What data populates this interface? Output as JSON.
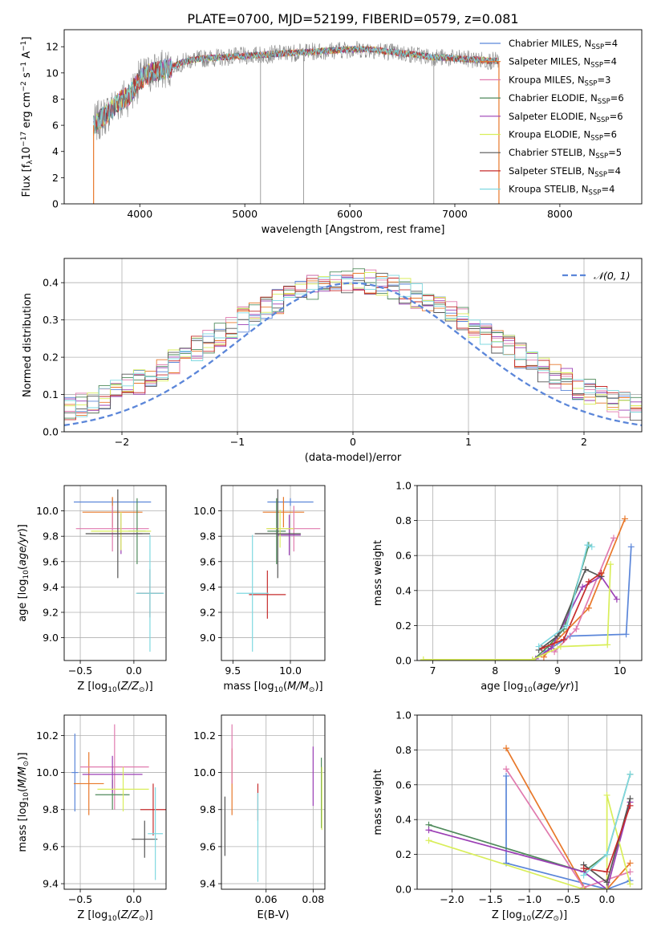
{
  "figure_title": "PLATE=0700, MJD=52199, FIBERID=0579, z=0.081",
  "colors": {
    "chabrier_miles": "#5b86d9",
    "salpeter_miles": "#e8782a",
    "kroupa_miles": "#e07aae",
    "chabrier_elodie": "#4f8a5b",
    "salpeter_elodie": "#9b3fb5",
    "kroupa_elodie": "#d9ee5a",
    "chabrier_stelib": "#555555",
    "salpeter_stelib": "#c62c2c",
    "kroupa_stelib": "#7fd8e0",
    "normal": "#5b86d9",
    "grid": "#b0b0b0"
  },
  "legend": [
    {
      "label": "Chabrier MILES, N",
      "sub": "SSP",
      "suffix": "=4",
      "color_key": "chabrier_miles"
    },
    {
      "label": "Salpeter MILES, N",
      "sub": "SSP",
      "suffix": "=4",
      "color_key": "salpeter_miles"
    },
    {
      "label": "Kroupa MILES, N",
      "sub": "SSP",
      "suffix": "=3",
      "color_key": "kroupa_miles"
    },
    {
      "label": "Chabrier ELODIE, N",
      "sub": "SSP",
      "suffix": "=6",
      "color_key": "chabrier_elodie"
    },
    {
      "label": "Salpeter ELODIE, N",
      "sub": "SSP",
      "suffix": "=6",
      "color_key": "salpeter_elodie"
    },
    {
      "label": "Kroupa ELODIE, N",
      "sub": "SSP",
      "suffix": "=6",
      "color_key": "kroupa_elodie"
    },
    {
      "label": "Chabrier STELIB, N",
      "sub": "SSP",
      "suffix": "=5",
      "color_key": "chabrier_stelib"
    },
    {
      "label": "Salpeter STELIB, N",
      "sub": "SSP",
      "suffix": "=4",
      "color_key": "salpeter_stelib"
    },
    {
      "label": "Kroupa STELIB, N",
      "sub": "SSP",
      "suffix": "=4",
      "color_key": "kroupa_stelib"
    }
  ],
  "chart_data": [
    {
      "id": "spectrum",
      "type": "line",
      "xlabel": "wavelength [Angstrom, rest frame]",
      "ylabel": "Flux [f_λ 10^-17 erg cm^-2 s^-1 A^-1]",
      "xlim": [
        3280,
        8780
      ],
      "ylim": [
        0,
        13.3
      ],
      "xticks": [
        4000,
        5000,
        6000,
        7000,
        8000
      ],
      "yticks": [
        0,
        2,
        4,
        6,
        8,
        10,
        12
      ],
      "grid": false,
      "legend_position": "right",
      "continuum": {
        "x": [
          3560,
          3600,
          3700,
          3800,
          3900,
          4000,
          4100,
          4200,
          4300,
          4400,
          4500,
          4600,
          4800,
          5000,
          5200,
          5400,
          5600,
          5800,
          6000,
          6200,
          6400,
          6600,
          6800,
          7000,
          7200,
          7400
        ],
        "y": [
          6.0,
          6.3,
          7.0,
          7.8,
          8.3,
          9.5,
          10.0,
          10.2,
          10.4,
          10.8,
          11.0,
          11.1,
          11.2,
          11.3,
          11.4,
          11.5,
          11.6,
          11.7,
          11.8,
          11.8,
          11.6,
          11.4,
          11.2,
          11.1,
          11.0,
          10.9
        ]
      },
      "data_end": 7420
    },
    {
      "id": "residuals",
      "type": "histogram",
      "xlabel": "(data-model)/error",
      "ylabel": "Normed distribution",
      "xlim": [
        -2.5,
        2.5
      ],
      "ylim": [
        0,
        0.465
      ],
      "xticks": [
        -2,
        -1,
        0,
        1,
        2
      ],
      "yticks": [
        0.0,
        0.1,
        0.2,
        0.3,
        0.4
      ],
      "grid": true,
      "legend_label": "N(0,1)",
      "legend_position": "top-right",
      "bin_width": 0.1
    },
    {
      "id": "age_vs_Z",
      "type": "errorbar",
      "xlabel": "Z [log10(Z/Z_sun)]",
      "ylabel": "age [log10(age/yr)]",
      "xlim": [
        -0.65,
        0.3
      ],
      "ylim": [
        8.82,
        10.2
      ],
      "xticks": [
        -0.5,
        0.0
      ],
      "yticks": [
        9.0,
        9.2,
        9.4,
        9.6,
        9.8,
        10.0
      ],
      "grid": true,
      "points": [
        {
          "color_key": "chabrier_miles",
          "x": -0.2,
          "xerr": 0.36,
          "y": 10.07,
          "yerr": 0.03
        },
        {
          "color_key": "salpeter_miles",
          "x": -0.2,
          "xerr": 0.28,
          "y": 9.99,
          "yerr": 0.12
        },
        {
          "color_key": "kroupa_miles",
          "x": -0.2,
          "xerr": 0.34,
          "y": 9.86,
          "yerr": 0.18
        },
        {
          "color_key": "chabrier_elodie",
          "x": 0.03,
          "xerr": 0.08,
          "y": 9.84,
          "yerr": 0.26
        },
        {
          "color_key": "salpeter_elodie",
          "x": -0.12,
          "xerr": 0.2,
          "y": 9.82,
          "yerr": 0.16
        },
        {
          "color_key": "kroupa_elodie",
          "x": -0.12,
          "xerr": 0.28,
          "y": 9.84,
          "yerr": 0.15
        },
        {
          "color_key": "chabrier_stelib",
          "x": -0.15,
          "xerr": 0.3,
          "y": 9.82,
          "yerr": 0.35
        },
        {
          "color_key": "salpeter_stelib",
          "x": 0.15,
          "xerr": 0.12,
          "y": 9.35,
          "yerr": 0.19
        },
        {
          "color_key": "kroupa_stelib",
          "x": 0.15,
          "xerr": 0.13,
          "y": 9.35,
          "yerr": 0.46
        }
      ]
    },
    {
      "id": "age_vs_mass",
      "type": "errorbar",
      "xlabel": "mass [log10(M/M_sun)]",
      "ylabel": "",
      "xlim": [
        9.4,
        10.3
      ],
      "ylim": [
        8.82,
        10.2
      ],
      "xticks": [
        9.5,
        10.0
      ],
      "yticks": [
        9.0,
        9.2,
        9.4,
        9.6,
        9.8,
        10.0
      ],
      "grid": true,
      "points": [
        {
          "color_key": "chabrier_miles",
          "x": 10.0,
          "xerr": 0.2,
          "y": 10.07,
          "yerr": 0.03
        },
        {
          "color_key": "salpeter_miles",
          "x": 9.94,
          "xerr": 0.18,
          "y": 9.99,
          "yerr": 0.12
        },
        {
          "color_key": "kroupa_miles",
          "x": 10.03,
          "xerr": 0.23,
          "y": 9.86,
          "yerr": 0.18
        },
        {
          "color_key": "chabrier_elodie",
          "x": 9.88,
          "xerr": 0.08,
          "y": 9.84,
          "yerr": 0.26
        },
        {
          "color_key": "salpeter_elodie",
          "x": 9.99,
          "xerr": 0.1,
          "y": 9.81,
          "yerr": 0.16
        },
        {
          "color_key": "kroupa_elodie",
          "x": 9.91,
          "xerr": 0.12,
          "y": 9.86,
          "yerr": 0.15
        },
        {
          "color_key": "chabrier_stelib",
          "x": 9.89,
          "xerr": 0.2,
          "y": 9.82,
          "yerr": 0.35
        },
        {
          "color_key": "salpeter_stelib",
          "x": 9.8,
          "xerr": 0.16,
          "y": 9.34,
          "yerr": 0.19
        },
        {
          "color_key": "kroupa_stelib",
          "x": 9.67,
          "xerr": 0.14,
          "y": 9.35,
          "yerr": 0.46
        }
      ]
    },
    {
      "id": "weight_vs_age",
      "type": "line",
      "xlabel": "age [log10(age/yr)]",
      "ylabel": "mass weight",
      "xlim": [
        6.75,
        10.35
      ],
      "ylim": [
        0,
        1.0
      ],
      "xticks": [
        7,
        8,
        9,
        10
      ],
      "yticks": [
        0.0,
        0.2,
        0.4,
        0.6,
        0.8,
        1.0
      ],
      "grid": true,
      "series": [
        {
          "color_key": "chabrier_miles",
          "x": [
            8.8,
            9.2,
            10.1,
            10.18
          ],
          "y": [
            0.05,
            0.14,
            0.15,
            0.65
          ]
        },
        {
          "color_key": "salpeter_miles",
          "x": [
            8.78,
            8.95,
            9.5,
            10.08
          ],
          "y": [
            0.02,
            0.1,
            0.3,
            0.81
          ]
        },
        {
          "color_key": "kroupa_miles",
          "x": [
            8.95,
            9.3,
            9.9
          ],
          "y": [
            0.05,
            0.18,
            0.7
          ]
        },
        {
          "color_key": "chabrier_elodie",
          "x": [
            8.6,
            8.85,
            9.1,
            9.5
          ],
          "y": [
            0.0,
            0.08,
            0.18,
            0.66
          ]
        },
        {
          "color_key": "salpeter_elodie",
          "x": [
            8.65,
            8.9,
            9.4,
            9.7,
            9.95
          ],
          "y": [
            0.01,
            0.07,
            0.42,
            0.48,
            0.35
          ]
        },
        {
          "color_key": "kroupa_elodie",
          "x": [
            6.85,
            8.6,
            9.05,
            9.8,
            9.85
          ],
          "y": [
            0.005,
            0.005,
            0.08,
            0.09,
            0.55
          ]
        },
        {
          "color_key": "chabrier_stelib",
          "x": [
            8.7,
            9.0,
            9.45,
            9.7
          ],
          "y": [
            0.06,
            0.14,
            0.52,
            0.48
          ]
        },
        {
          "color_key": "salpeter_stelib",
          "x": [
            8.75,
            9.1,
            9.5,
            9.7
          ],
          "y": [
            0.07,
            0.12,
            0.45,
            0.5
          ]
        },
        {
          "color_key": "kroupa_stelib",
          "x": [
            8.7,
            9.15,
            9.48,
            9.55
          ],
          "y": [
            0.08,
            0.2,
            0.66,
            0.65
          ]
        }
      ]
    },
    {
      "id": "mass_vs_Z",
      "type": "errorbar",
      "xlabel": "Z [log10(Z/Z_sun)]",
      "ylabel": "mass [log10(M/M_sun)]",
      "xlim": [
        -0.65,
        0.3
      ],
      "ylim": [
        9.37,
        10.31
      ],
      "xticks": [
        -0.5,
        0.0
      ],
      "yticks": [
        9.4,
        9.6,
        9.8,
        10.0,
        10.2
      ],
      "grid": true,
      "points": [
        {
          "color_key": "chabrier_miles",
          "x": -0.55,
          "xerr": 0.03,
          "y": 10.0,
          "yerr": 0.21
        },
        {
          "color_key": "salpeter_miles",
          "x": -0.42,
          "xerr": 0.14,
          "y": 9.94,
          "yerr": 0.17
        },
        {
          "color_key": "kroupa_miles",
          "x": -0.18,
          "xerr": 0.32,
          "y": 10.03,
          "yerr": 0.23
        },
        {
          "color_key": "chabrier_elodie",
          "x": -0.2,
          "xerr": 0.16,
          "y": 9.88,
          "yerr": 0.08
        },
        {
          "color_key": "salpeter_elodie",
          "x": -0.2,
          "xerr": 0.28,
          "y": 9.99,
          "yerr": 0.1
        },
        {
          "color_key": "kroupa_elodie",
          "x": -0.1,
          "xerr": 0.24,
          "y": 9.91,
          "yerr": 0.12
        },
        {
          "color_key": "chabrier_stelib",
          "x": 0.1,
          "xerr": 0.12,
          "y": 9.64,
          "yerr": 0.1
        },
        {
          "color_key": "salpeter_stelib",
          "x": 0.18,
          "xerr": 0.12,
          "y": 9.8,
          "yerr": 0.14
        },
        {
          "color_key": "kroupa_stelib",
          "x": 0.2,
          "xerr": 0.07,
          "y": 9.67,
          "yerr": 0.25
        }
      ]
    },
    {
      "id": "mass_vs_ebv",
      "type": "errorbar",
      "xlabel": "E(B-V)",
      "ylabel": "",
      "xlim": [
        0.041,
        0.085
      ],
      "ylim": [
        9.37,
        10.31
      ],
      "xticks": [
        0.06,
        0.08
      ],
      "yticks": [
        9.4,
        9.6,
        9.8,
        10.0,
        10.2
      ],
      "grid": true,
      "points": [
        {
          "color_key": "chabrier_stelib",
          "x": 0.0425,
          "y": 9.71,
          "yerr": 0.16
        },
        {
          "color_key": "salpeter_miles",
          "x": 0.0455,
          "y": 9.95,
          "yerr": 0.18
        },
        {
          "color_key": "kroupa_miles",
          "x": 0.0455,
          "y": 10.1,
          "yerr": 0.16
        },
        {
          "color_key": "salpeter_stelib",
          "x": 0.0565,
          "y": 9.84,
          "yerr": 0.1
        },
        {
          "color_key": "kroupa_stelib",
          "x": 0.0565,
          "y": 9.65,
          "yerr": 0.24
        },
        {
          "color_key": "salpeter_elodie",
          "x": 0.08,
          "y": 9.98,
          "yerr": 0.16
        },
        {
          "color_key": "chabrier_elodie",
          "x": 0.0835,
          "y": 9.89,
          "yerr": 0.19
        },
        {
          "color_key": "kroupa_elodie",
          "x": 0.0837,
          "y": 9.86,
          "yerr": 0.17
        }
      ]
    },
    {
      "id": "weight_vs_Z",
      "type": "line",
      "xlabel": "Z [log10(Z/Z_sun)]",
      "ylabel": "mass weight",
      "xlim": [
        -2.45,
        0.45
      ],
      "ylim": [
        0,
        1.0
      ],
      "xticks": [
        -2.0,
        -1.5,
        -1.0,
        -0.5,
        0.0
      ],
      "yticks": [
        0.0,
        0.2,
        0.4,
        0.6,
        0.8,
        1.0
      ],
      "grid": true,
      "series": [
        {
          "color_key": "chabrier_miles",
          "x": [
            -1.3,
            -1.3,
            0.0,
            0.3
          ],
          "y": [
            0.65,
            0.15,
            0.0,
            0.05
          ]
        },
        {
          "color_key": "salpeter_miles",
          "x": [
            -1.3,
            -0.28,
            0.0,
            0.3
          ],
          "y": [
            0.81,
            0.0,
            0.0,
            0.15
          ]
        },
        {
          "color_key": "kroupa_miles",
          "x": [
            -1.3,
            -0.3,
            0.3
          ],
          "y": [
            0.69,
            0.01,
            0.1
          ]
        },
        {
          "color_key": "chabrier_elodie",
          "x": [
            -2.3,
            -0.3,
            0.0,
            0.3
          ],
          "y": [
            0.37,
            0.1,
            0.2,
            0.66
          ]
        },
        {
          "color_key": "salpeter_elodie",
          "x": [
            -2.3,
            -0.3,
            0.0,
            0.3
          ],
          "y": [
            0.34,
            0.1,
            0.0,
            0.5
          ]
        },
        {
          "color_key": "kroupa_elodie",
          "x": [
            -2.3,
            -0.3,
            0.0,
            0.0,
            0.3
          ],
          "y": [
            0.28,
            0.0,
            0.0,
            0.54,
            0.03
          ]
        },
        {
          "color_key": "chabrier_stelib",
          "x": [
            -0.3,
            0.0,
            0.3
          ],
          "y": [
            0.14,
            0.04,
            0.52
          ]
        },
        {
          "color_key": "salpeter_stelib",
          "x": [
            -0.3,
            0.0,
            0.3
          ],
          "y": [
            0.12,
            0.1,
            0.48
          ]
        },
        {
          "color_key": "kroupa_stelib",
          "x": [
            -0.3,
            0.0,
            0.3
          ],
          "y": [
            0.08,
            0.2,
            0.66
          ]
        }
      ]
    }
  ]
}
